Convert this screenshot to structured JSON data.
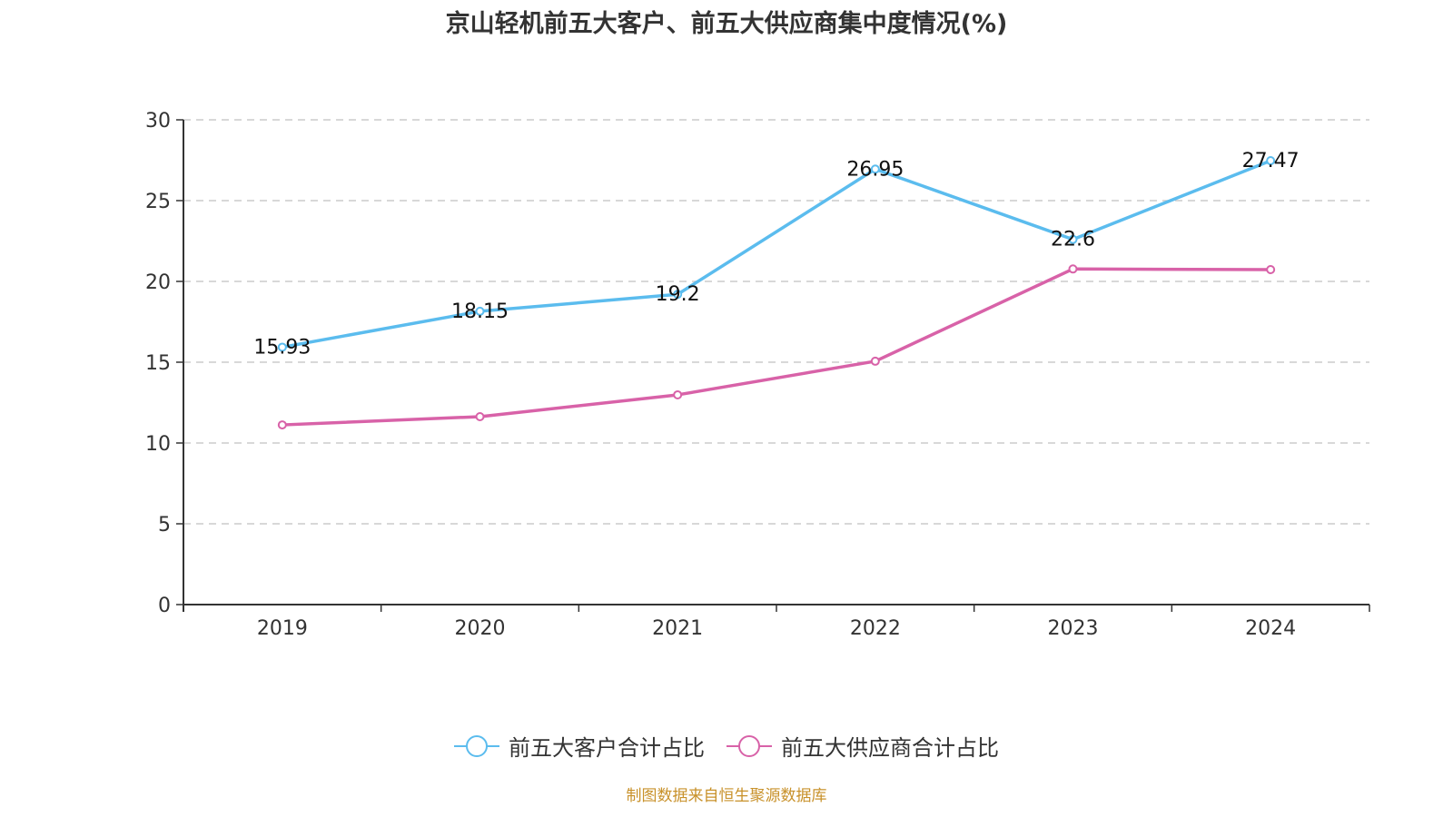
{
  "chart_data": {
    "type": "line",
    "title": "京山轻机前五大客户、前五大供应商集中度情况(%)",
    "xlabel": "",
    "ylabel": "",
    "categories": [
      "2019",
      "2020",
      "2021",
      "2022",
      "2023",
      "2024"
    ],
    "ylim": [
      0,
      30
    ],
    "yticks": [
      0,
      5,
      10,
      15,
      20,
      25,
      30
    ],
    "grid": true,
    "legend_position": "bottom",
    "series": [
      {
        "name": "前五大客户合计占比",
        "color": "#5bbcee",
        "values": [
          15.93,
          18.15,
          19.2,
          26.95,
          22.6,
          27.47
        ],
        "labels": true
      },
      {
        "name": "前五大供应商合计占比",
        "color": "#d862a8",
        "values": [
          11.12,
          11.63,
          12.98,
          15.06,
          20.77,
          20.73
        ],
        "labels": false
      }
    ]
  },
  "source": "制图数据来自恒生聚源数据库"
}
